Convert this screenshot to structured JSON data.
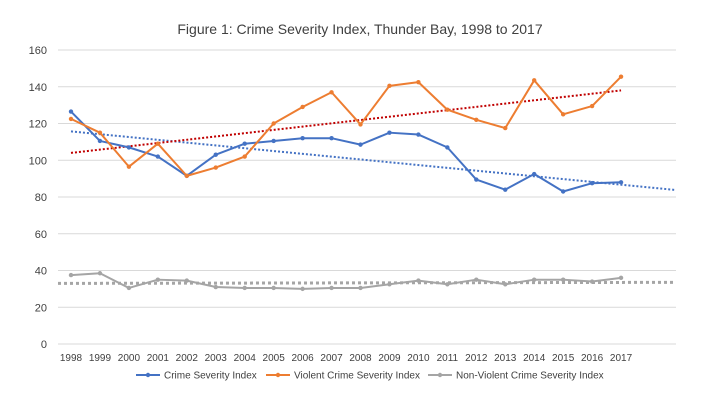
{
  "chart_data": {
    "type": "line",
    "title": "Figure 1: Crime Severity Index, Thunder Bay, 1998 to 2017",
    "xlabel": "",
    "ylabel": "",
    "categories": [
      "1998",
      "1999",
      "2000",
      "2001",
      "2002",
      "2003",
      "2004",
      "2005",
      "2006",
      "2007",
      "2008",
      "2009",
      "2010",
      "2011",
      "2012",
      "2013",
      "2014",
      "2015",
      "2016",
      "2017"
    ],
    "ylim": [
      0,
      160
    ],
    "yticks": [
      0,
      20,
      40,
      60,
      80,
      100,
      120,
      140,
      160
    ],
    "grid": true,
    "legend_position": "bottom",
    "series": [
      {
        "name": "Crime Severity Index",
        "color": "#4472c4",
        "values": [
          126.5,
          110.5,
          107,
          102,
          91.5,
          103,
          109,
          110.5,
          112,
          112,
          108.5,
          115,
          114,
          107,
          89.5,
          84,
          92.5,
          83,
          87.5,
          88
        ],
        "trendline": [
          115.7,
          86.7
        ]
      },
      {
        "name": "Violent Crime Severity Index",
        "color": "#ed7d31",
        "values": [
          122.5,
          115,
          96.5,
          109,
          91.5,
          96,
          102,
          120,
          129,
          137,
          119.5,
          140.5,
          142.5,
          127.5,
          122,
          117.5,
          143.5,
          125,
          129.5,
          145.5
        ],
        "trendline": [
          104,
          138
        ]
      },
      {
        "name": "Non-Violent Crime Severity Index",
        "color": "#a5a5a5",
        "values": [
          37.5,
          38.5,
          30.5,
          35,
          34.5,
          31,
          30.5,
          30.5,
          30,
          30.5,
          30.5,
          32.5,
          34.5,
          32.5,
          35,
          32.5,
          35,
          35,
          34,
          36
        ],
        "trendline": [
          33,
          33.5
        ]
      }
    ],
    "trendline_colors": [
      "#4472c4",
      "#c00000",
      "#a5a5a5"
    ]
  }
}
